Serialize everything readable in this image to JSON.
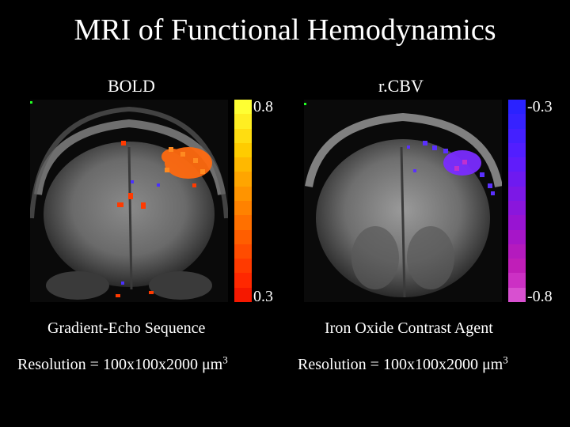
{
  "title": "MRI of Functional Hemodynamics",
  "left_panel": {
    "label": "BOLD",
    "scale_max": "0.8",
    "scale_min": "0.3",
    "caption_sequence": "Gradient-Echo Sequence",
    "caption_resolution": "Resolution = 100x100x2000 μm",
    "caption_resolution_exp": "3",
    "colorbar_colors": [
      "#ffff33",
      "#ffee22",
      "#ffdd11",
      "#ffcc00",
      "#ffb800",
      "#ffa500",
      "#ff9400",
      "#ff8200",
      "#ff7000",
      "#ff5e00",
      "#ff4c00",
      "#ff3a00",
      "#ff2800",
      "#f51800"
    ],
    "activation_color": "#ff6a10"
  },
  "right_panel": {
    "label": "r.CBV",
    "scale_max": "-0.3",
    "scale_min": "-0.8",
    "caption_sequence": "Iron Oxide Contrast Agent",
    "caption_resolution": "Resolution = 100x100x2000 μm",
    "caption_resolution_exp": "3",
    "colorbar_colors": [
      "#2a22ff",
      "#3622ff",
      "#4420ff",
      "#521eff",
      "#601cfa",
      "#6e1af0",
      "#7c18e6",
      "#8a16dc",
      "#9814d2",
      "#a616c8",
      "#b41abe",
      "#c01eb8",
      "#cc30c4",
      "#d850d0"
    ],
    "activation_color": "#7a2cff"
  }
}
